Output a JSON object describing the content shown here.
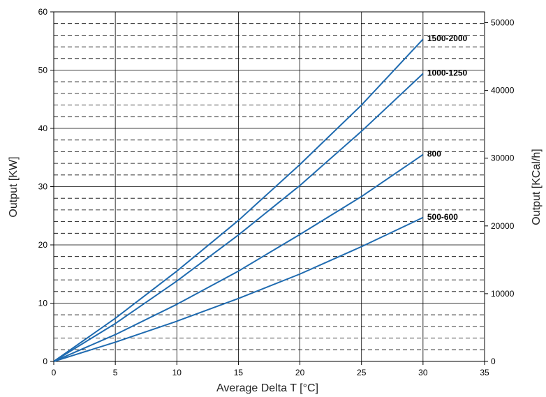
{
  "chart_data": {
    "type": "line",
    "title": "",
    "xlabel": "Average Delta T [°C]",
    "ylabel": "Output [KW]",
    "y2label": "Output [KCal/h]",
    "xlim": [
      0,
      35
    ],
    "ylim": [
      0,
      60
    ],
    "y2lim": [
      0,
      51600
    ],
    "x_ticks": [
      "0",
      "5",
      "10",
      "15",
      "20",
      "25",
      "30",
      "35"
    ],
    "y_ticks": [
      "0",
      "10",
      "20",
      "30",
      "40",
      "50",
      "60"
    ],
    "y2_ticks": [
      "0",
      "10000",
      "20000",
      "30000",
      "40000",
      "50000"
    ],
    "grid": true,
    "series_color": "#1f6bb0",
    "series": [
      {
        "name": "1500-2000",
        "x": [
          0,
          5,
          10,
          15,
          20,
          25,
          30
        ],
        "values": [
          0,
          7.4,
          15.5,
          24.2,
          33.8,
          44.0,
          55.3
        ]
      },
      {
        "name": "1000-1250",
        "x": [
          0,
          5,
          10,
          15,
          20,
          25,
          30
        ],
        "values": [
          0,
          6.5,
          13.8,
          21.7,
          30.2,
          39.5,
          49.4
        ]
      },
      {
        "name": "800",
        "x": [
          0,
          5,
          10,
          15,
          20,
          25,
          30
        ],
        "values": [
          0,
          4.6,
          9.8,
          15.5,
          21.8,
          28.3,
          35.5
        ]
      },
      {
        "name": "500-600",
        "x": [
          0,
          5,
          10,
          15,
          20,
          25,
          30
        ],
        "values": [
          0,
          3.3,
          6.9,
          10.8,
          15.0,
          19.7,
          24.7
        ]
      }
    ]
  }
}
